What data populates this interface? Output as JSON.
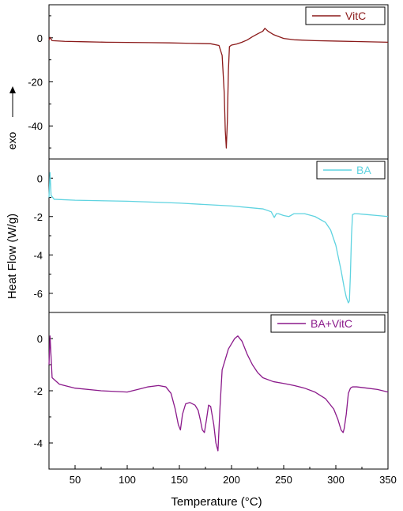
{
  "shared": {
    "xlabel": "Temperature (°C)",
    "ylabel": "Heat Flow (W/g)",
    "exo_label": "exo",
    "xlim": [
      25,
      350
    ],
    "xticks": [
      50,
      100,
      150,
      200,
      250,
      300,
      350
    ]
  },
  "chart_data": [
    {
      "type": "line",
      "series": [
        {
          "name": "VitC",
          "color": "#8b1a1a",
          "x": [
            25,
            26,
            28,
            40,
            60,
            80,
            100,
            120,
            140,
            160,
            180,
            188,
            191,
            193,
            194,
            195,
            196,
            197,
            198,
            200,
            205,
            210,
            215,
            220,
            225,
            230,
            232,
            235,
            240,
            250,
            260,
            280,
            300,
            320,
            350
          ],
          "y": [
            -1.0,
            0.2,
            -1.3,
            -1.6,
            -1.8,
            -2.0,
            -2.1,
            -2.2,
            -2.3,
            -2.5,
            -2.7,
            -3.5,
            -8,
            -25,
            -42,
            -50,
            -38,
            -15,
            -4,
            -3.3,
            -2.8,
            -2.0,
            -1.0,
            0.5,
            1.8,
            3.0,
            4.3,
            3.0,
            1.5,
            -0.3,
            -0.9,
            -1.3,
            -1.5,
            -1.7,
            -2.0
          ]
        }
      ],
      "ylim": [
        -55,
        15
      ],
      "yticks": [
        0,
        -20,
        -40
      ],
      "legend": "top-right"
    },
    {
      "type": "line",
      "series": [
        {
          "name": "BA",
          "color": "#5fd3e0",
          "x": [
            25,
            26,
            27,
            30,
            50,
            100,
            150,
            200,
            230,
            238,
            241,
            243,
            245,
            250,
            255,
            260,
            270,
            280,
            290,
            295,
            300,
            305,
            308,
            310,
            312,
            313,
            314,
            315,
            316,
            318,
            320,
            330,
            340,
            350
          ],
          "y": [
            -1.0,
            0.3,
            -0.9,
            -1.1,
            -1.15,
            -1.2,
            -1.3,
            -1.45,
            -1.6,
            -1.75,
            -2.05,
            -1.85,
            -1.85,
            -1.95,
            -2.0,
            -1.85,
            -1.85,
            -2.0,
            -2.3,
            -2.7,
            -3.5,
            -4.8,
            -5.7,
            -6.2,
            -6.5,
            -6.4,
            -5.0,
            -3.0,
            -1.9,
            -1.85,
            -1.85,
            -1.9,
            -1.95,
            -2.0
          ]
        }
      ],
      "ylim": [
        -7,
        1
      ],
      "yticks": [
        0,
        -2,
        -4,
        -6
      ],
      "legend": "top-right"
    },
    {
      "type": "line",
      "series": [
        {
          "name": "BA+VitC",
          "color": "#8b1a8b",
          "x": [
            25,
            26,
            28,
            35,
            50,
            75,
            100,
            110,
            120,
            130,
            137,
            142,
            146,
            149,
            151,
            153,
            156,
            160,
            165,
            168,
            170,
            172,
            174,
            176,
            178,
            180,
            183,
            185,
            187,
            189,
            191,
            194,
            197,
            200,
            203,
            206,
            210,
            215,
            220,
            225,
            230,
            240,
            250,
            260,
            270,
            280,
            290,
            298,
            302,
            305,
            307,
            308,
            310,
            312,
            314,
            316,
            320,
            330,
            340,
            350
          ],
          "y": [
            -1.0,
            0.1,
            -1.5,
            -1.75,
            -1.9,
            -2.0,
            -2.05,
            -1.95,
            -1.85,
            -1.8,
            -1.85,
            -2.1,
            -2.7,
            -3.3,
            -3.5,
            -2.9,
            -2.5,
            -2.45,
            -2.55,
            -2.75,
            -3.1,
            -3.5,
            -3.6,
            -3.1,
            -2.55,
            -2.6,
            -3.3,
            -4.0,
            -4.3,
            -2.6,
            -1.2,
            -0.8,
            -0.4,
            -0.2,
            0.0,
            0.1,
            -0.1,
            -0.6,
            -1.0,
            -1.3,
            -1.5,
            -1.65,
            -1.72,
            -1.8,
            -1.9,
            -2.05,
            -2.3,
            -2.7,
            -3.1,
            -3.5,
            -3.6,
            -3.45,
            -2.9,
            -2.1,
            -1.9,
            -1.85,
            -1.85,
            -1.9,
            -1.95,
            -2.05
          ]
        }
      ],
      "ylim": [
        -5,
        1
      ],
      "yticks": [
        0,
        -2,
        -4
      ],
      "legend": "top-right"
    }
  ]
}
